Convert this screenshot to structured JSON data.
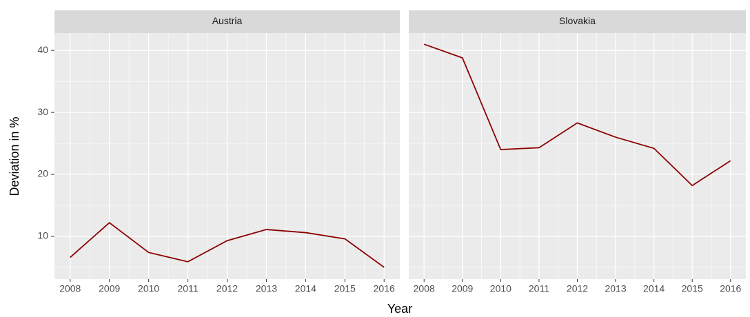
{
  "chart_data": {
    "type": "line",
    "x": [
      2008,
      2009,
      2010,
      2011,
      2012,
      2013,
      2014,
      2015,
      2016
    ],
    "series": [
      {
        "name": "Austria",
        "color": "#8b0000",
        "values": [
          6.6,
          12.2,
          7.4,
          5.9,
          9.3,
          11.1,
          10.6,
          9.6,
          5.0
        ]
      },
      {
        "name": "Slovakia",
        "color": "#8b0000",
        "values": [
          41.0,
          38.8,
          24.0,
          24.3,
          28.3,
          26.0,
          24.2,
          18.2,
          22.2
        ]
      }
    ],
    "xlabel": "Year",
    "ylabel": "Deviation in %",
    "xlim": [
      2007.6,
      2016.4
    ],
    "xticks": [
      2008,
      2009,
      2010,
      2011,
      2012,
      2013,
      2014,
      2015,
      2016
    ],
    "ylim": [
      3.1,
      42.8
    ],
    "yticks": [
      10,
      20,
      30,
      40
    ],
    "grid": true
  }
}
